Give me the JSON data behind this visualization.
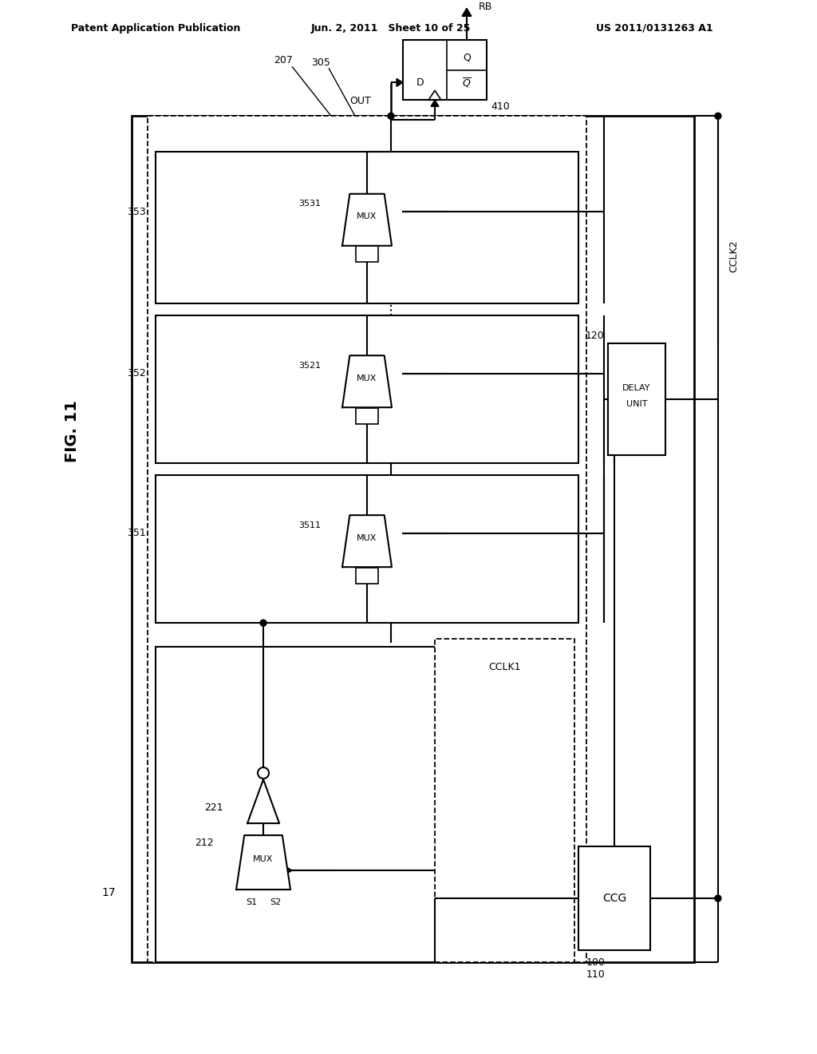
{
  "title_left": "Patent Application Publication",
  "title_mid": "Jun. 2, 2011   Sheet 10 of 25",
  "title_right": "US 2011/0131263 A1",
  "fig_label": "FIG. 11",
  "background": "#ffffff",
  "line_color": "#000000"
}
